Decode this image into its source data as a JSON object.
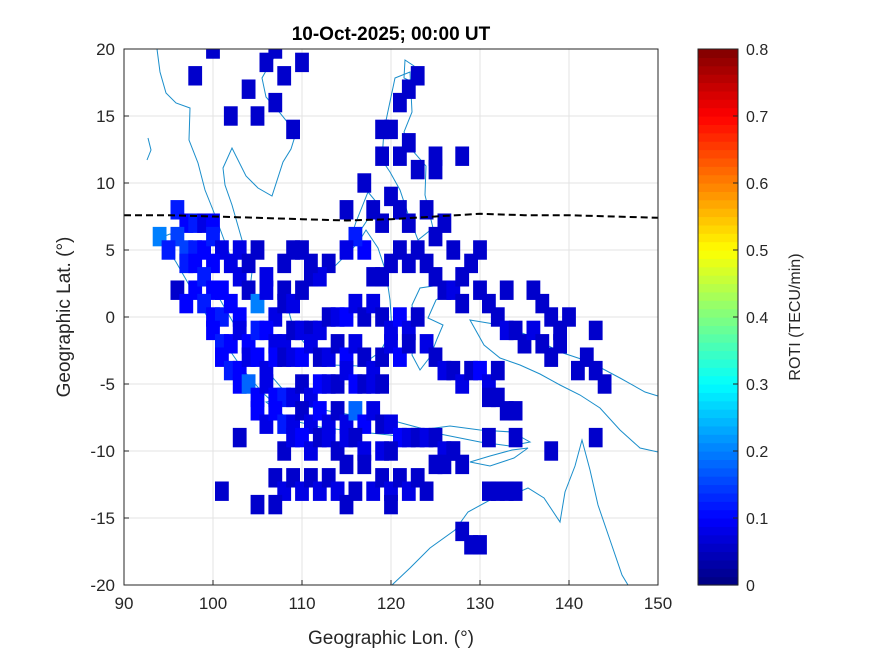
{
  "chart_data": {
    "type": "heatmap",
    "title": "10-Oct-2025; 00:00 UT",
    "xlabel": "Geographic Lon. (°)",
    "ylabel": "Geographic Lat. (°)",
    "xlim": [
      90,
      150
    ],
    "ylim": [
      -20,
      20
    ],
    "xticks": [
      90,
      100,
      110,
      120,
      130,
      140,
      150
    ],
    "yticks": [
      -20,
      -15,
      -10,
      -5,
      0,
      5,
      10,
      15,
      20
    ],
    "grid": true,
    "colorbar": {
      "label": "ROTI (TECU/min)",
      "range": [
        0,
        0.8
      ],
      "ticks": [
        0,
        0.1,
        0.2,
        0.3,
        0.4,
        0.5,
        0.6,
        0.7,
        0.8
      ],
      "colormap": "jet"
    },
    "magnetic_equator": [
      [
        90,
        7.6
      ],
      [
        95,
        7.6
      ],
      [
        100,
        7.5
      ],
      [
        105,
        7.4
      ],
      [
        110,
        7.3
      ],
      [
        115,
        7.2
      ],
      [
        120,
        7.3
      ],
      [
        125,
        7.5
      ],
      [
        130,
        7.7
      ],
      [
        135,
        7.6
      ],
      [
        140,
        7.6
      ],
      [
        145,
        7.5
      ],
      [
        150,
        7.4
      ]
    ],
    "cells": [
      [
        96,
        8,
        0.12
      ],
      [
        97,
        7,
        0.1
      ],
      [
        98,
        7,
        0.12
      ],
      [
        99,
        7,
        0.08
      ],
      [
        100,
        7,
        0.1
      ],
      [
        96,
        6,
        0.15
      ],
      [
        94,
        6,
        0.2
      ],
      [
        95,
        5,
        0.12
      ],
      [
        97,
        5,
        0.15
      ],
      [
        98,
        5,
        0.12
      ],
      [
        99,
        5,
        0.1
      ],
      [
        100,
        6,
        0.12
      ],
      [
        101,
        5,
        0.08
      ],
      [
        97,
        4,
        0.12
      ],
      [
        98,
        4,
        0.1
      ],
      [
        100,
        4,
        0.1
      ],
      [
        102,
        4,
        0.08
      ],
      [
        103,
        3,
        0.08
      ],
      [
        96,
        2,
        0.06
      ],
      [
        98,
        2,
        0.1
      ],
      [
        99,
        3,
        0.12
      ],
      [
        100,
        2,
        0.1
      ],
      [
        101,
        2,
        0.1
      ],
      [
        104,
        2,
        0.06
      ],
      [
        106,
        3,
        0.08
      ],
      [
        108,
        2,
        0.06
      ],
      [
        97,
        1,
        0.1
      ],
      [
        99,
        1,
        0.12
      ],
      [
        100,
        0,
        0.1
      ],
      [
        101,
        0,
        0.12
      ],
      [
        102,
        1,
        0.1
      ],
      [
        103,
        0,
        0.1
      ],
      [
        105,
        1,
        0.2
      ],
      [
        106,
        2,
        0.08
      ],
      [
        107,
        0,
        0.08
      ],
      [
        108,
        1,
        0.06
      ],
      [
        109,
        1,
        0.08
      ],
      [
        110,
        2,
        0.06
      ],
      [
        111,
        3,
        0.06
      ],
      [
        100,
        -1,
        0.1
      ],
      [
        101,
        -2,
        0.12
      ],
      [
        102,
        -2,
        0.1
      ],
      [
        103,
        -1,
        0.08
      ],
      [
        104,
        -2,
        0.1
      ],
      [
        105,
        -1,
        0.12
      ],
      [
        106,
        -1,
        0.1
      ],
      [
        107,
        -2,
        0.08
      ],
      [
        108,
        -2,
        0.08
      ],
      [
        109,
        -1,
        0.06
      ],
      [
        110,
        -1,
        0.08
      ],
      [
        111,
        -1,
        0.06
      ],
      [
        112,
        -1,
        0.08
      ],
      [
        113,
        0,
        0.06
      ],
      [
        114,
        0,
        0.08
      ],
      [
        115,
        0,
        0.1
      ],
      [
        116,
        1,
        0.08
      ],
      [
        117,
        0,
        0.06
      ],
      [
        118,
        1,
        0.08
      ],
      [
        119,
        0,
        0.06
      ],
      [
        120,
        -1,
        0.08
      ],
      [
        121,
        0,
        0.1
      ],
      [
        122,
        -1,
        0.08
      ],
      [
        123,
        0,
        0.06
      ],
      [
        101,
        -3,
        0.1
      ],
      [
        102,
        -4,
        0.12
      ],
      [
        103,
        -4,
        0.1
      ],
      [
        104,
        -3,
        0.08
      ],
      [
        105,
        -3,
        0.1
      ],
      [
        106,
        -4,
        0.08
      ],
      [
        107,
        -3,
        0.1
      ],
      [
        108,
        -3,
        0.06
      ],
      [
        109,
        -3,
        0.08
      ],
      [
        110,
        -3,
        0.1
      ],
      [
        111,
        -2,
        0.08
      ],
      [
        112,
        -3,
        0.06
      ],
      [
        113,
        -3,
        0.08
      ],
      [
        114,
        -2,
        0.06
      ],
      [
        115,
        -3,
        0.1
      ],
      [
        116,
        -2,
        0.08
      ],
      [
        117,
        -3,
        0.06
      ],
      [
        118,
        -4,
        0.08
      ],
      [
        119,
        -3,
        0.06
      ],
      [
        120,
        -2,
        0.08
      ],
      [
        121,
        -3,
        0.1
      ],
      [
        122,
        -2,
        0.06
      ],
      [
        124,
        -2,
        0.08
      ],
      [
        125,
        -3,
        0.06
      ],
      [
        103,
        -5,
        0.1
      ],
      [
        104,
        -5,
        0.18
      ],
      [
        105,
        -6,
        0.1
      ],
      [
        106,
        -5,
        0.08
      ],
      [
        107,
        -6,
        0.1
      ],
      [
        108,
        -6,
        0.12
      ],
      [
        109,
        -6,
        0.08
      ],
      [
        110,
        -5,
        0.06
      ],
      [
        111,
        -6,
        0.08
      ],
      [
        112,
        -5,
        0.1
      ],
      [
        113,
        -5,
        0.08
      ],
      [
        114,
        -5,
        0.06
      ],
      [
        115,
        -4,
        0.08
      ],
      [
        116,
        -5,
        0.1
      ],
      [
        117,
        -5,
        0.06
      ],
      [
        118,
        -5,
        0.08
      ],
      [
        119,
        -5,
        0.06
      ],
      [
        126,
        -4,
        0.08
      ],
      [
        127,
        -4,
        0.06
      ],
      [
        128,
        -5,
        0.08
      ],
      [
        129,
        -4,
        0.06
      ],
      [
        130,
        -4,
        0.1
      ],
      [
        131,
        -5,
        0.08
      ],
      [
        132,
        -4,
        0.06
      ],
      [
        105,
        -7,
        0.1
      ],
      [
        106,
        -8,
        0.08
      ],
      [
        107,
        -7,
        0.1
      ],
      [
        108,
        -8,
        0.12
      ],
      [
        109,
        -8,
        0.08
      ],
      [
        110,
        -7,
        0.06
      ],
      [
        111,
        -8,
        0.08
      ],
      [
        112,
        -7,
        0.1
      ],
      [
        113,
        -8,
        0.08
      ],
      [
        114,
        -7,
        0.06
      ],
      [
        115,
        -8,
        0.08
      ],
      [
        116,
        -7,
        0.18
      ],
      [
        117,
        -8,
        0.1
      ],
      [
        118,
        -7,
        0.08
      ],
      [
        119,
        -8,
        0.06
      ],
      [
        120,
        -8,
        0.08
      ],
      [
        121,
        -9,
        0.1
      ],
      [
        122,
        -9,
        0.08
      ],
      [
        123,
        -9,
        0.06
      ],
      [
        124,
        -9,
        0.08
      ],
      [
        125,
        -9,
        0.06
      ],
      [
        126,
        -10,
        0.08
      ],
      [
        127,
        -10,
        0.06
      ],
      [
        108,
        -10,
        0.06
      ],
      [
        109,
        -9,
        0.08
      ],
      [
        110,
        -9,
        0.1
      ],
      [
        111,
        -10,
        0.08
      ],
      [
        112,
        -9,
        0.06
      ],
      [
        113,
        -9,
        0.08
      ],
      [
        114,
        -10,
        0.06
      ],
      [
        115,
        -9,
        0.08
      ],
      [
        116,
        -9,
        0.06
      ],
      [
        117,
        -10,
        0.08
      ],
      [
        119,
        -10,
        0.08
      ],
      [
        120,
        -10,
        0.06
      ],
      [
        103,
        -9,
        0.06
      ],
      [
        107,
        -12,
        0.06
      ],
      [
        108,
        -13,
        0.08
      ],
      [
        109,
        -12,
        0.06
      ],
      [
        110,
        -13,
        0.08
      ],
      [
        111,
        -12,
        0.06
      ],
      [
        112,
        -13,
        0.08
      ],
      [
        113,
        -12,
        0.06
      ],
      [
        114,
        -13,
        0.08
      ],
      [
        115,
        -11,
        0.06
      ],
      [
        116,
        -13,
        0.06
      ],
      [
        117,
        -11,
        0.06
      ],
      [
        118,
        -13,
        0.08
      ],
      [
        119,
        -12,
        0.06
      ],
      [
        120,
        -13,
        0.08
      ],
      [
        121,
        -12,
        0.06
      ],
      [
        122,
        -13,
        0.08
      ],
      [
        123,
        -12,
        0.06
      ],
      [
        124,
        -13,
        0.06
      ],
      [
        125,
        -11,
        0.06
      ],
      [
        126,
        -11,
        0.06
      ],
      [
        127,
        -10,
        0.06
      ],
      [
        128,
        -11,
        0.06
      ],
      [
        131,
        -13,
        0.06
      ],
      [
        132,
        -13,
        0.06
      ],
      [
        133,
        -13,
        0.06
      ],
      [
        134,
        -13,
        0.06
      ],
      [
        101,
        -13,
        0.06
      ],
      [
        105,
        -14,
        0.06
      ],
      [
        107,
        -14,
        0.06
      ],
      [
        115,
        -14,
        0.06
      ],
      [
        120,
        -14,
        0.06
      ],
      [
        128,
        -16,
        0.06
      ],
      [
        129,
        -17,
        0.06
      ],
      [
        130,
        -17,
        0.06
      ],
      [
        125,
        3,
        0.06
      ],
      [
        126,
        2,
        0.06
      ],
      [
        127,
        2,
        0.08
      ],
      [
        128,
        1,
        0.06
      ],
      [
        128,
        3,
        0.06
      ],
      [
        129,
        4,
        0.06
      ],
      [
        130,
        2,
        0.06
      ],
      [
        131,
        1,
        0.06
      ],
      [
        132,
        0,
        0.06
      ],
      [
        133,
        -1,
        0.08
      ],
      [
        134,
        -1,
        0.06
      ],
      [
        135,
        -2,
        0.06
      ],
      [
        136,
        -1,
        0.08
      ],
      [
        137,
        -2,
        0.06
      ],
      [
        138,
        -3,
        0.06
      ],
      [
        139,
        -2,
        0.06
      ],
      [
        137,
        1,
        0.06
      ],
      [
        138,
        0,
        0.06
      ],
      [
        139,
        -1,
        0.06
      ],
      [
        140,
        0,
        0.06
      ],
      [
        141,
        -4,
        0.06
      ],
      [
        142,
        -3,
        0.06
      ],
      [
        143,
        -4,
        0.06
      ],
      [
        143,
        -1,
        0.06
      ],
      [
        133,
        2,
        0.06
      ],
      [
        136,
        2,
        0.06
      ],
      [
        131,
        -6,
        0.06
      ],
      [
        132,
        -6,
        0.06
      ],
      [
        133,
        -7,
        0.06
      ],
      [
        134,
        -7,
        0.06
      ],
      [
        131,
        -9,
        0.06
      ],
      [
        134,
        -9,
        0.06
      ],
      [
        138,
        -10,
        0.06
      ],
      [
        143,
        -9,
        0.06
      ],
      [
        144,
        -5,
        0.06
      ],
      [
        130,
        5,
        0.06
      ],
      [
        125,
        6,
        0.06
      ],
      [
        127,
        5,
        0.06
      ],
      [
        121,
        5,
        0.06
      ],
      [
        122,
        4,
        0.06
      ],
      [
        123,
        5,
        0.06
      ],
      [
        124,
        4,
        0.06
      ],
      [
        119,
        3,
        0.06
      ],
      [
        120,
        4,
        0.06
      ],
      [
        118,
        3,
        0.06
      ],
      [
        117,
        5,
        0.1
      ],
      [
        116,
        6,
        0.12
      ],
      [
        115,
        5,
        0.08
      ],
      [
        113,
        4,
        0.06
      ],
      [
        112,
        3,
        0.08
      ],
      [
        111,
        4,
        0.06
      ],
      [
        110,
        5,
        0.06
      ],
      [
        109,
        5,
        0.06
      ],
      [
        108,
        4,
        0.06
      ],
      [
        105,
        5,
        0.06
      ],
      [
        103,
        5,
        0.08
      ],
      [
        104,
        4,
        0.06
      ],
      [
        118,
        8,
        0.06
      ],
      [
        119,
        7,
        0.06
      ],
      [
        121,
        8,
        0.06
      ],
      [
        122,
        7,
        0.06
      ],
      [
        124,
        8,
        0.06
      ],
      [
        126,
        7,
        0.06
      ],
      [
        115,
        8,
        0.06
      ],
      [
        120,
        9,
        0.06
      ],
      [
        117,
        10,
        0.06
      ],
      [
        120,
        14,
        0.06
      ],
      [
        121,
        12,
        0.06
      ],
      [
        122,
        13,
        0.06
      ],
      [
        123,
        11,
        0.06
      ],
      [
        121,
        16,
        0.06
      ],
      [
        122,
        17,
        0.06
      ],
      [
        123,
        18,
        0.06
      ],
      [
        125,
        12,
        0.06
      ],
      [
        125,
        11,
        0.06
      ],
      [
        119,
        12,
        0.06
      ],
      [
        119,
        14,
        0.06
      ],
      [
        98,
        18,
        0.06
      ],
      [
        102,
        15,
        0.06
      ],
      [
        104,
        17,
        0.06
      ],
      [
        105,
        15,
        0.06
      ],
      [
        106,
        19,
        0.06
      ],
      [
        107,
        16,
        0.06
      ],
      [
        108,
        18,
        0.06
      ],
      [
        109,
        14,
        0.06
      ],
      [
        110,
        19,
        0.06
      ],
      [
        107,
        20,
        0.06
      ],
      [
        100,
        20,
        0.06
      ],
      [
        128,
        12,
        0.06
      ]
    ]
  },
  "colors": {
    "coast": "#1a8ecb",
    "equator": "#000000",
    "grid": "#e3e3e3",
    "axis": "#262626"
  }
}
